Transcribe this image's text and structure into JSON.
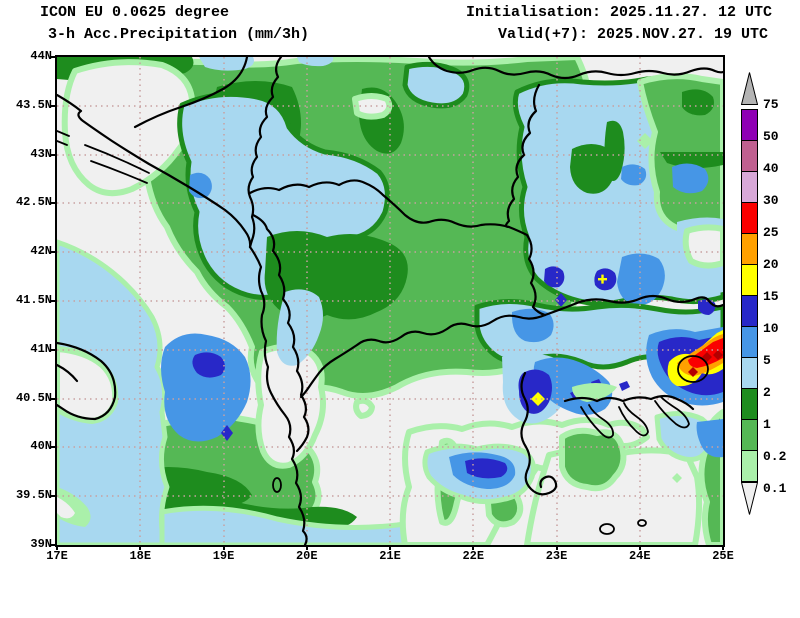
{
  "header": {
    "model_line": "ICON EU 0.0625 degree",
    "product_line": "3-h Acc.Precipitation (mm/3h)",
    "init_line": "Initialisation: 2025.11.27. 12 UTC",
    "valid_line": "Valid(+7): 2025.NOV.27. 19 UTC"
  },
  "axes": {
    "lat_labels": [
      "44N",
      "43.5N",
      "43N",
      "42.5N",
      "42N",
      "41.5N",
      "41N",
      "40.5N",
      "40N",
      "39.5N",
      "39N"
    ],
    "lon_labels": [
      "17E",
      "18E",
      "19E",
      "20E",
      "21E",
      "22E",
      "23E",
      "24E",
      "25E"
    ]
  },
  "legend": {
    "boundary_labels_top_to_bottom": [
      "75",
      "50",
      "40",
      "30",
      "25",
      "20",
      "15",
      "10",
      "5",
      "2",
      "1",
      "0.2",
      "0.1"
    ],
    "block_colors_top_to_bottom": [
      "#8F00B4",
      "#C06090",
      "#D8A8D8",
      "#FA0000",
      "#FFA000",
      "#FFFF00",
      "#2828C8",
      "#4696E6",
      "#A8D8F0",
      "#1E8C1E",
      "#55B855",
      "#AAF0AA"
    ],
    "overflow_arrow_color": "#B4B4B4",
    "underflow_arrow_color": "#F0F0F0"
  },
  "map_style": {
    "dry_color": "#F0F0F0",
    "grid_color": "#C8A0A0",
    "border_color": "#000000"
  }
}
